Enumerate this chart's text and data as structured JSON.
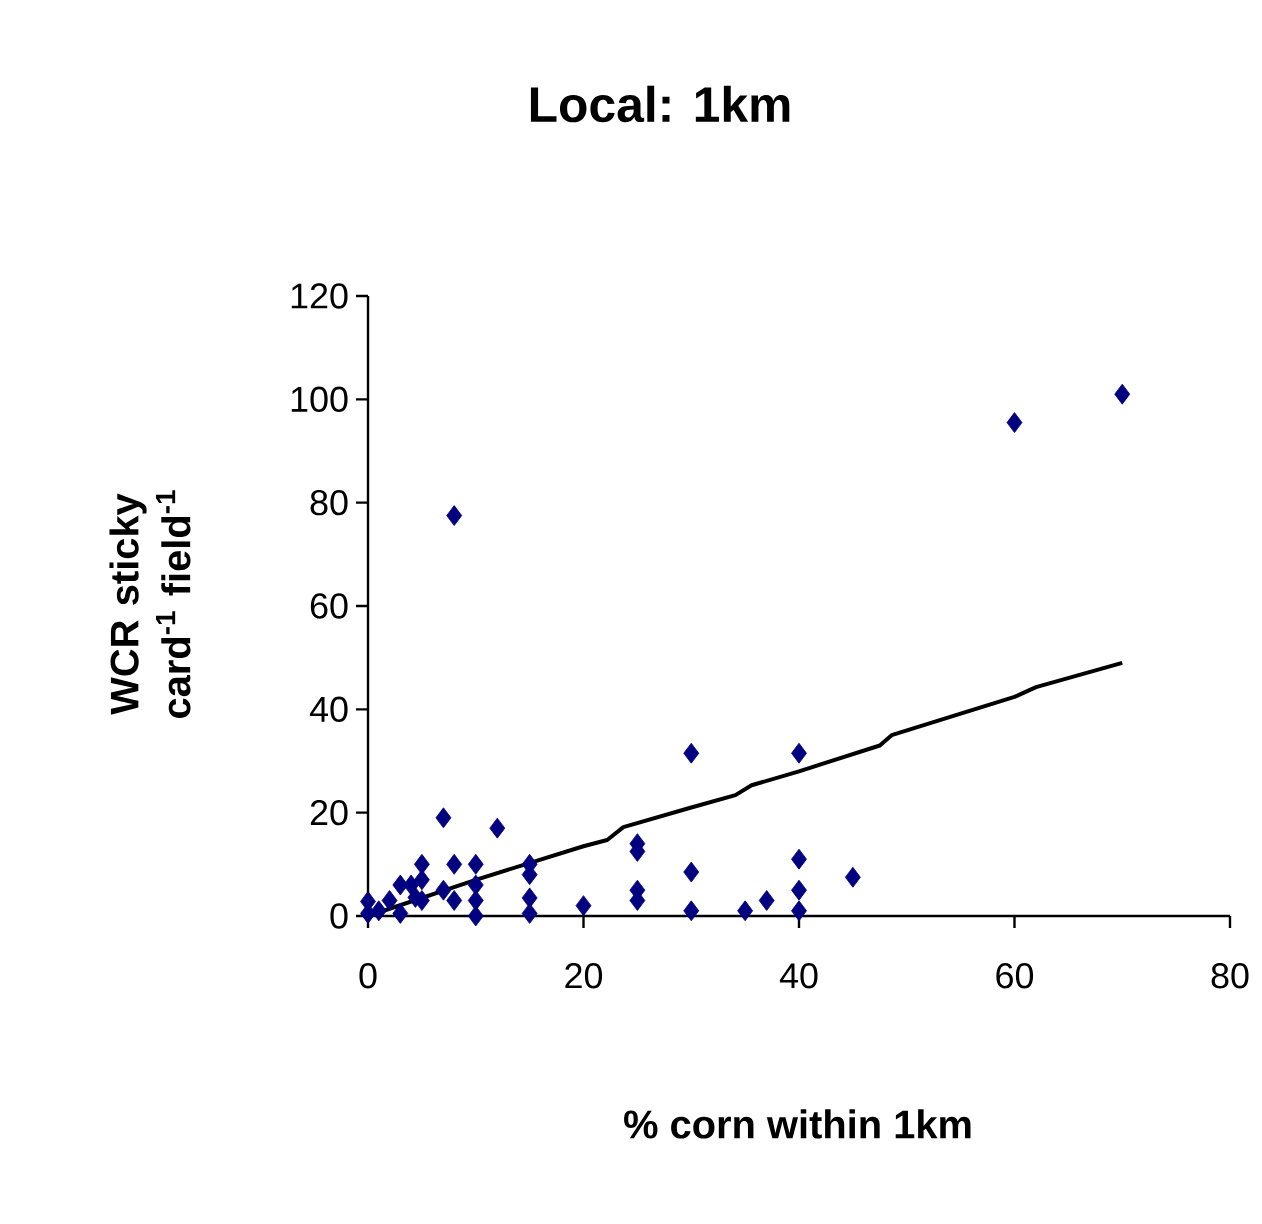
{
  "chart_data": {
    "type": "scatter",
    "title": "Local: 1km",
    "xlabel": "% corn within 1km",
    "ylabel": "WCR sticky card$^{-1}$ field$^{-1}$",
    "xlim": [
      0,
      80
    ],
    "ylim": [
      0,
      120
    ],
    "xticks": [
      0,
      20,
      40,
      60,
      80
    ],
    "yticks": [
      0,
      20,
      40,
      60,
      80,
      100,
      120
    ],
    "grid": false,
    "marker": "diamond",
    "series": [
      {
        "color": "#000080",
        "x": [
          0,
          0,
          1,
          2,
          3,
          3,
          4,
          4.4,
          5,
          5,
          5,
          7,
          7,
          8,
          8,
          8,
          10,
          10,
          10,
          10,
          12,
          15,
          15,
          15,
          15,
          20,
          25,
          25,
          25,
          25,
          30,
          30,
          30,
          35,
          37,
          40,
          40,
          40,
          40,
          45,
          60,
          70
        ],
        "values": [
          2.8,
          0.5,
          1,
          3,
          6,
          0.5,
          6,
          3.6,
          10,
          7,
          3,
          19,
          5,
          10,
          3,
          77.5,
          10,
          6,
          3,
          0,
          17,
          10,
          8,
          3.5,
          0.5,
          2,
          14,
          12.5,
          5,
          3,
          31.5,
          8.5,
          1,
          1,
          3,
          31.5,
          11,
          5,
          1,
          7.5,
          95.5,
          101
        ]
      },
      {
        "type": "line",
        "color": "#000000",
        "marker": "none",
        "line_style": "solid",
        "x": [
          0,
          10,
          20,
          22.2,
          23.7,
          30,
          34.1,
          35.6,
          40,
          47.5,
          48.6,
          60,
          62,
          70
        ],
        "values": [
          0,
          7,
          13.5,
          14.7,
          17.2,
          21,
          23.4,
          25.3,
          28,
          33,
          35,
          42.4,
          44.3,
          49
        ]
      }
    ]
  }
}
